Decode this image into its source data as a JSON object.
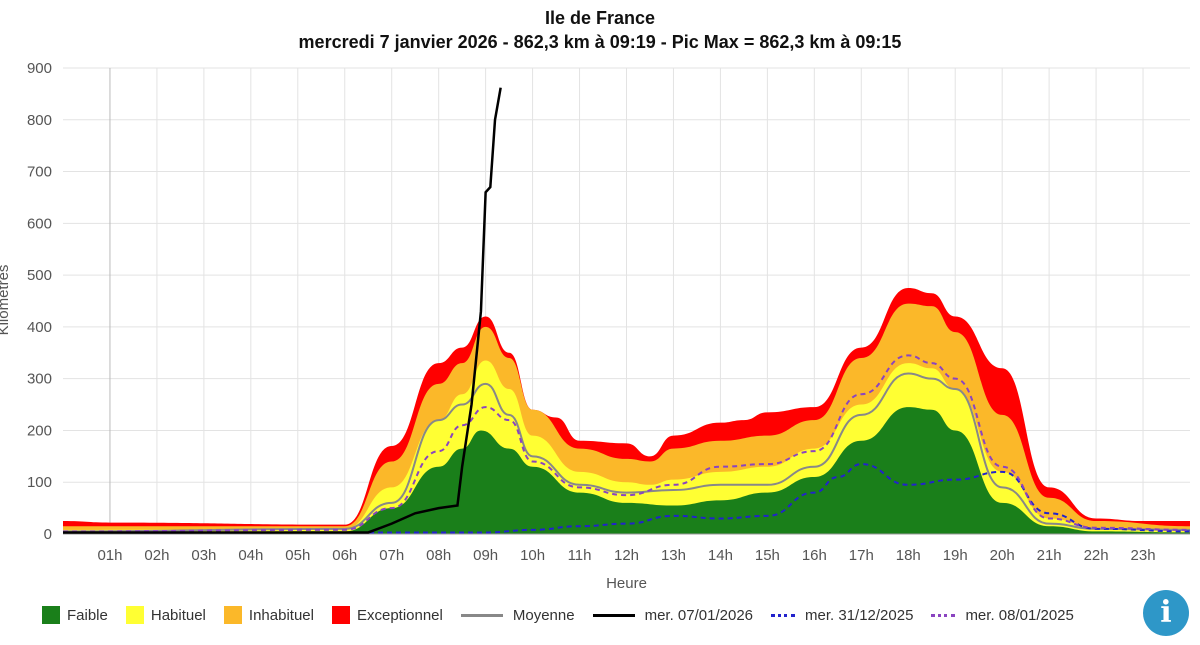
{
  "chart_data": {
    "type": "area",
    "title": "Ile de France",
    "subtitle": "mercredi 7 janvier 2026 - 862,3 km à 09:19 - Pic Max = 862,3 km à 09:15",
    "xlabel": "Heure",
    "ylabel": "Kilomètres",
    "xlim": [
      0,
      24
    ],
    "ylim": [
      0,
      900
    ],
    "y_ticks": [
      "0",
      "100",
      "200",
      "300",
      "400",
      "500",
      "600",
      "700",
      "800",
      "900"
    ],
    "x_ticks": [
      "01h",
      "02h",
      "03h",
      "04h",
      "05h",
      "06h",
      "07h",
      "08h",
      "09h",
      "10h",
      "11h",
      "12h",
      "13h",
      "14h",
      "15h",
      "16h",
      "17h",
      "18h",
      "19h",
      "20h",
      "21h",
      "22h",
      "23h"
    ],
    "grid": true,
    "legend_position": "bottom",
    "bands": [
      {
        "name": "Exceptionnel",
        "color": "#ff0000",
        "points": [
          [
            0,
            25
          ],
          [
            1,
            22
          ],
          [
            6,
            18
          ],
          [
            7,
            170
          ],
          [
            8,
            330
          ],
          [
            8.5,
            360
          ],
          [
            9,
            420
          ],
          [
            9.5,
            350
          ],
          [
            10,
            240
          ],
          [
            10.5,
            225
          ],
          [
            11,
            180
          ],
          [
            12,
            175
          ],
          [
            12.5,
            150
          ],
          [
            13,
            190
          ],
          [
            14,
            215
          ],
          [
            14.5,
            220
          ],
          [
            15,
            235
          ],
          [
            16,
            245
          ],
          [
            17,
            360
          ],
          [
            18,
            475
          ],
          [
            18.5,
            465
          ],
          [
            19,
            420
          ],
          [
            20,
            320
          ],
          [
            21,
            90
          ],
          [
            22,
            30
          ],
          [
            23,
            25
          ],
          [
            24,
            25
          ]
        ]
      },
      {
        "name": "Inhabituel",
        "color": "#fbb829",
        "points": [
          [
            0,
            15
          ],
          [
            6,
            15
          ],
          [
            7,
            140
          ],
          [
            8,
            290
          ],
          [
            8.5,
            330
          ],
          [
            9,
            400
          ],
          [
            9.5,
            340
          ],
          [
            10,
            240
          ],
          [
            11,
            165
          ],
          [
            12,
            145
          ],
          [
            12.5,
            140
          ],
          [
            13,
            165
          ],
          [
            14,
            180
          ],
          [
            15,
            190
          ],
          [
            16,
            220
          ],
          [
            17,
            340
          ],
          [
            18,
            445
          ],
          [
            18.5,
            440
          ],
          [
            19,
            390
          ],
          [
            20,
            230
          ],
          [
            21,
            70
          ],
          [
            22,
            25
          ],
          [
            24,
            15
          ]
        ]
      },
      {
        "name": "Habituel",
        "color": "#ffff33",
        "points": [
          [
            0,
            8
          ],
          [
            6,
            10
          ],
          [
            7,
            90
          ],
          [
            8,
            220
          ],
          [
            8.5,
            270
          ],
          [
            9,
            335
          ],
          [
            9.5,
            280
          ],
          [
            10,
            190
          ],
          [
            11,
            120
          ],
          [
            12,
            100
          ],
          [
            12.5,
            95
          ],
          [
            13,
            105
          ],
          [
            14,
            120
          ],
          [
            15,
            130
          ],
          [
            16,
            165
          ],
          [
            17,
            250
          ],
          [
            18,
            330
          ],
          [
            18.5,
            320
          ],
          [
            19,
            280
          ],
          [
            20,
            120
          ],
          [
            21,
            30
          ],
          [
            22,
            12
          ],
          [
            24,
            8
          ]
        ]
      },
      {
        "name": "Faible",
        "color": "#1a7f1a",
        "points": [
          [
            0,
            3
          ],
          [
            6,
            5
          ],
          [
            7,
            50
          ],
          [
            8,
            130
          ],
          [
            8.5,
            165
          ],
          [
            8.9,
            200
          ],
          [
            9.5,
            165
          ],
          [
            10,
            130
          ],
          [
            11,
            80
          ],
          [
            12,
            60
          ],
          [
            13,
            55
          ],
          [
            14,
            65
          ],
          [
            15,
            80
          ],
          [
            16,
            110
          ],
          [
            17,
            180
          ],
          [
            18,
            245
          ],
          [
            18.5,
            240
          ],
          [
            19,
            200
          ],
          [
            20,
            60
          ],
          [
            21,
            15
          ],
          [
            22,
            5
          ],
          [
            24,
            3
          ]
        ]
      }
    ],
    "series": [
      {
        "name": "Moyenne",
        "color": "#888888",
        "style": "solid",
        "points": [
          [
            0,
            5
          ],
          [
            6,
            10
          ],
          [
            7,
            60
          ],
          [
            8,
            220
          ],
          [
            8.5,
            250
          ],
          [
            9,
            290
          ],
          [
            9.5,
            230
          ],
          [
            10,
            150
          ],
          [
            11,
            95
          ],
          [
            12,
            80
          ],
          [
            13,
            85
          ],
          [
            14,
            95
          ],
          [
            15,
            95
          ],
          [
            16,
            130
          ],
          [
            17,
            230
          ],
          [
            18,
            310
          ],
          [
            18.5,
            300
          ],
          [
            19,
            280
          ],
          [
            20,
            90
          ],
          [
            21,
            20
          ],
          [
            22,
            10
          ],
          [
            24,
            8
          ]
        ]
      },
      {
        "name": "mer. 31/12/2025",
        "color": "#2222cc",
        "style": "dashed",
        "points": [
          [
            0,
            3
          ],
          [
            6,
            3
          ],
          [
            8,
            3
          ],
          [
            9,
            3
          ],
          [
            10,
            8
          ],
          [
            11,
            15
          ],
          [
            12,
            20
          ],
          [
            13,
            35
          ],
          [
            14,
            30
          ],
          [
            15,
            35
          ],
          [
            16,
            80
          ],
          [
            16.5,
            110
          ],
          [
            17,
            135
          ],
          [
            18,
            95
          ],
          [
            19,
            105
          ],
          [
            20,
            120
          ],
          [
            21,
            40
          ],
          [
            22,
            10
          ],
          [
            24,
            5
          ]
        ]
      },
      {
        "name": "mer. 08/01/2025",
        "color": "#8a44c0",
        "style": "dashed",
        "points": [
          [
            0,
            5
          ],
          [
            6,
            8
          ],
          [
            7,
            50
          ],
          [
            8,
            160
          ],
          [
            8.5,
            210
          ],
          [
            9,
            245
          ],
          [
            9.5,
            220
          ],
          [
            10,
            140
          ],
          [
            11,
            90
          ],
          [
            12,
            75
          ],
          [
            13,
            95
          ],
          [
            14,
            130
          ],
          [
            15,
            135
          ],
          [
            16,
            160
          ],
          [
            17,
            270
          ],
          [
            18,
            345
          ],
          [
            18.5,
            330
          ],
          [
            19,
            300
          ],
          [
            20,
            130
          ],
          [
            21,
            30
          ],
          [
            22,
            12
          ],
          [
            24,
            8
          ]
        ]
      },
      {
        "name": "mer. 07/01/2026",
        "color": "#000000",
        "style": "solid",
        "points": [
          [
            0,
            3
          ],
          [
            6.5,
            3
          ],
          [
            7,
            20
          ],
          [
            7.5,
            40
          ],
          [
            8,
            50
          ],
          [
            8.4,
            55
          ],
          [
            8.5,
            130
          ],
          [
            8.7,
            250
          ],
          [
            8.9,
            430
          ],
          [
            9.0,
            660
          ],
          [
            9.1,
            670
          ],
          [
            9.2,
            800
          ],
          [
            9.32,
            862
          ]
        ]
      }
    ]
  },
  "legend": {
    "items": [
      {
        "label": "Faible",
        "color": "#1a7f1a",
        "kind": "box"
      },
      {
        "label": "Habituel",
        "color": "#ffff33",
        "kind": "box"
      },
      {
        "label": "Inhabituel",
        "color": "#fbb829",
        "kind": "box"
      },
      {
        "label": "Exceptionnel",
        "color": "#ff0000",
        "kind": "box"
      },
      {
        "label": "Moyenne",
        "color": "#888888",
        "kind": "solid"
      },
      {
        "label": "mer. 07/01/2026",
        "color": "#000000",
        "kind": "solid"
      },
      {
        "label": "mer. 31/12/2025",
        "color": "#2222cc",
        "kind": "dashed"
      },
      {
        "label": "mer. 08/01/2025",
        "color": "#8a44c0",
        "kind": "dashed"
      }
    ]
  },
  "info_button": {
    "icon": "info-icon",
    "label": "i"
  }
}
